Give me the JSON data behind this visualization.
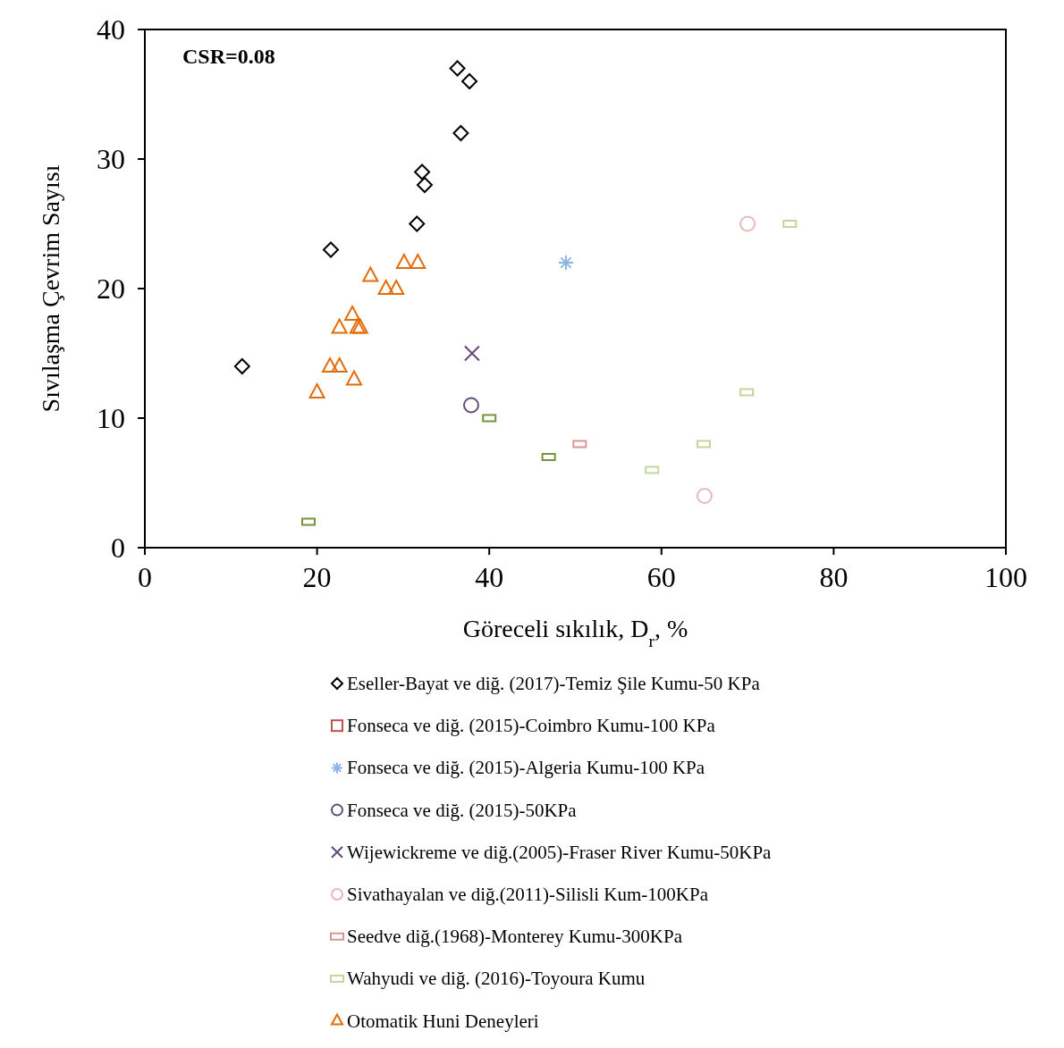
{
  "chart_data": {
    "type": "scatter",
    "xlabel": "Göreceli sıkılık, D$_{r}$, %",
    "ylabel": "Sıvılaşma Çevrim Sayısı",
    "xlim": [
      0,
      100
    ],
    "ylim": [
      0,
      40
    ],
    "xticks": [
      0,
      20,
      40,
      60,
      80,
      100
    ],
    "yticks": [
      0,
      10,
      20,
      30,
      40
    ],
    "grid": false,
    "legend": "bottom",
    "annotations": [
      "CSR=0.08"
    ],
    "series": [
      {
        "name": "Eseller-Bayat ve diğ. (2017)-Temiz Şile Kumu-50 KPa",
        "color": "#000000",
        "marker": "diamond",
        "x": [
          11.3,
          21.6,
          31.6,
          32.2,
          32.5,
          36.7,
          36.3,
          37.7
        ],
        "values": [
          14,
          23,
          25,
          29,
          28,
          32,
          37,
          36
        ]
      },
      {
        "name": "Fonseca ve diğ. (2015)-Coimbro Kumu-100 KPa",
        "color": "#c0504d",
        "marker": "square"
      },
      {
        "name": "Fonseca ve diğ. (2015)-Algeria Kumu-100 KPa",
        "color": "#8eb4e3",
        "x": [
          48.9
        ],
        "values": [
          22
        ]
      },
      {
        "name": "Fonseca ve diğ. (2015)-50KPa",
        "color": "#604a7b",
        "marker": "circle",
        "x": [
          37.9
        ],
        "values": [
          11
        ]
      },
      {
        "name": "Wijewickreme ve diğ.(2005)-Fraser River Kumu-50KPa",
        "color": "#604a7b",
        "marker": "cross",
        "x": [
          38
        ],
        "values": [
          15
        ]
      },
      {
        "name": "Sivathayalan ve diğ.(2011)-Silisli Kum-100KPa",
        "color": "#e6b9b8",
        "marker": "circle",
        "x": [
          70,
          65
        ],
        "values": [
          25,
          4
        ]
      },
      {
        "name": "Seedve diğ.(1968)-Monterey Kumu-300KPa",
        "color": "#d99594",
        "marker": "square",
        "x": [
          50.5
        ],
        "values": [
          8
        ]
      },
      {
        "name": "Wahyudi ve diğ. (2016)-Toyoura Kumu",
        "color": "#c3d69b",
        "colors": [
          "#77933c",
          "#77933c",
          "#77933c",
          "#c3d69b",
          "#c3d69b",
          "#c3d69b",
          "#c3d69b"
        ],
        "marker": "square",
        "x": [
          19,
          40,
          46.9,
          58.9,
          64.9,
          69.9,
          74.9
        ],
        "values": [
          2,
          10,
          7,
          6,
          8,
          12,
          25
        ]
      },
      {
        "name": "Otomatik Huni Deneyleri",
        "color": "#e36c09",
        "marker": "triangle",
        "x": [
          20,
          21.5,
          22.6,
          24.3,
          22.6,
          24.1,
          24.7,
          25,
          26.2,
          28,
          29.2,
          30.1,
          31.7
        ],
        "values": [
          12,
          14,
          14,
          13,
          17,
          18,
          17,
          17,
          21,
          20,
          20,
          22,
          22
        ]
      }
    ]
  }
}
